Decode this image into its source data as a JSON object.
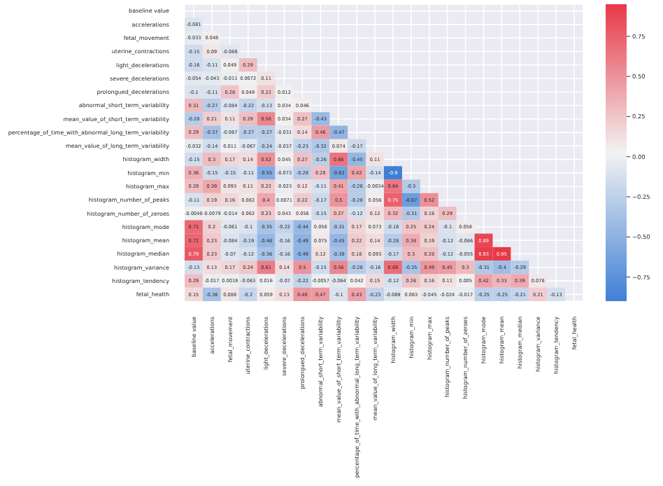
{
  "chart_data": {
    "type": "heatmap",
    "categories": [
      "baseline value",
      "accelerations",
      "fetal_movement",
      "uterine_contractions",
      "light_decelerations",
      "severe_decelerations",
      "prolongued_decelerations",
      "abnormal_short_term_variability",
      "mean_value_of_short_term_variability",
      "percentage_of_time_with_abnormal_long_term_variability",
      "mean_value_of_long_term_variability",
      "histogram_width",
      "histogram_min",
      "histogram_max",
      "histogram_number_of_peaks",
      "histogram_number_of_zeroes",
      "histogram_mode",
      "histogram_mean",
      "histogram_median",
      "histogram_variance",
      "histogram_tendency",
      "fetal_health"
    ],
    "y_categories": [
      "baseline value",
      "accelerations",
      "fetal_movement",
      "uterine_contractions",
      "light_decelerations",
      "severe_decelerations",
      "prolongued_decelerations",
      "abnormal_short_term_variability",
      "mean_value_of_short_term_variability",
      "percentage_of_time_with_abnormal_long_term_variability",
      "mean_value_of_long_term_variability",
      "histogram_width",
      "histogram_min",
      "histogram_max",
      "histogram_number_of_peaks",
      "histogram_number_of_zeroes",
      "histogram_mode",
      "histogram_mean",
      "histogram_median",
      "histogram_variance",
      "histogram_tendency",
      "fetal_health"
    ],
    "cells": [
      [
        null,
        null,
        null,
        null,
        null,
        null,
        null,
        null,
        null,
        null,
        null,
        null,
        null,
        null,
        null,
        null,
        null,
        null,
        null,
        null,
        null,
        null
      ],
      [
        -0.081,
        null,
        null,
        null,
        null,
        null,
        null,
        null,
        null,
        null,
        null,
        null,
        null,
        null,
        null,
        null,
        null,
        null,
        null,
        null,
        null,
        null
      ],
      [
        -0.033,
        0.048,
        null,
        null,
        null,
        null,
        null,
        null,
        null,
        null,
        null,
        null,
        null,
        null,
        null,
        null,
        null,
        null,
        null,
        null,
        null,
        null
      ],
      [
        -0.15,
        0.09,
        -0.069,
        null,
        null,
        null,
        null,
        null,
        null,
        null,
        null,
        null,
        null,
        null,
        null,
        null,
        null,
        null,
        null,
        null,
        null,
        null
      ],
      [
        -0.16,
        -0.11,
        0.049,
        0.29,
        null,
        null,
        null,
        null,
        null,
        null,
        null,
        null,
        null,
        null,
        null,
        null,
        null,
        null,
        null,
        null,
        null,
        null
      ],
      [
        -0.054,
        -0.043,
        -0.011,
        0.0072,
        0.11,
        null,
        null,
        null,
        null,
        null,
        null,
        null,
        null,
        null,
        null,
        null,
        null,
        null,
        null,
        null,
        null,
        null
      ],
      [
        -0.1,
        -0.11,
        0.26,
        0.049,
        0.22,
        0.012,
        null,
        null,
        null,
        null,
        null,
        null,
        null,
        null,
        null,
        null,
        null,
        null,
        null,
        null,
        null,
        null
      ],
      [
        0.31,
        -0.27,
        -0.084,
        -0.22,
        -0.13,
        0.034,
        0.046,
        null,
        null,
        null,
        null,
        null,
        null,
        null,
        null,
        null,
        null,
        null,
        null,
        null,
        null,
        null
      ],
      [
        -0.28,
        0.21,
        0.11,
        0.29,
        0.56,
        0.034,
        0.27,
        -0.43,
        null,
        null,
        null,
        null,
        null,
        null,
        null,
        null,
        null,
        null,
        null,
        null,
        null,
        null
      ],
      [
        0.29,
        -0.37,
        -0.067,
        -0.27,
        -0.27,
        -0.031,
        0.14,
        0.46,
        -0.47,
        null,
        null,
        null,
        null,
        null,
        null,
        null,
        null,
        null,
        null,
        null,
        null,
        null
      ],
      [
        -0.032,
        -0.14,
        0.011,
        -0.067,
        -0.24,
        -0.037,
        -0.23,
        -0.32,
        0.074,
        -0.17,
        null,
        null,
        null,
        null,
        null,
        null,
        null,
        null,
        null,
        null,
        null,
        null
      ],
      [
        -0.15,
        0.3,
        0.17,
        0.14,
        0.52,
        0.045,
        0.27,
        -0.26,
        0.66,
        -0.45,
        0.11,
        null,
        null,
        null,
        null,
        null,
        null,
        null,
        null,
        null,
        null,
        null
      ],
      [
        0.36,
        -0.15,
        -0.15,
        -0.11,
        -0.55,
        -0.073,
        -0.28,
        0.28,
        -0.62,
        0.42,
        -0.14,
        -0.9,
        null,
        null,
        null,
        null,
        null,
        null,
        null,
        null,
        null,
        null
      ],
      [
        0.28,
        0.39,
        0.093,
        0.11,
        0.22,
        -0.023,
        0.12,
        -0.11,
        0.41,
        -0.28,
        -0.0034,
        0.64,
        -0.3,
        null,
        null,
        null,
        null,
        null,
        null,
        null,
        null,
        null
      ],
      [
        -0.11,
        0.19,
        0.16,
        0.082,
        0.4,
        0.0071,
        0.22,
        -0.17,
        0.5,
        -0.28,
        0.056,
        0.75,
        -0.67,
        0.52,
        null,
        null,
        null,
        null,
        null,
        null,
        null,
        null
      ],
      [
        -0.0048,
        -0.0079,
        -0.014,
        0.062,
        0.23,
        0.043,
        0.056,
        -0.15,
        0.27,
        -0.12,
        0.12,
        0.32,
        -0.31,
        0.18,
        0.29,
        null,
        null,
        null,
        null,
        null,
        null,
        null
      ],
      [
        0.71,
        0.2,
        -0.061,
        -0.1,
        -0.35,
        -0.22,
        -0.44,
        0.058,
        -0.31,
        0.17,
        0.073,
        -0.16,
        0.25,
        0.24,
        -0.1,
        0.058,
        null,
        null,
        null,
        null,
        null,
        null
      ],
      [
        0.72,
        0.23,
        -0.084,
        -0.19,
        -0.46,
        -0.16,
        -0.49,
        0.075,
        -0.45,
        0.22,
        0.14,
        -0.28,
        0.38,
        0.19,
        -0.12,
        -0.066,
        0.89,
        null,
        null,
        null,
        null,
        null
      ],
      [
        0.79,
        0.23,
        -0.07,
        -0.12,
        -0.36,
        -0.16,
        -0.49,
        0.12,
        -0.38,
        0.18,
        0.093,
        -0.17,
        0.3,
        0.28,
        -0.12,
        -0.055,
        0.93,
        0.95,
        null,
        null,
        null,
        null
      ],
      [
        -0.13,
        0.13,
        0.17,
        0.24,
        0.61,
        0.14,
        0.5,
        -0.15,
        0.56,
        -0.28,
        -0.16,
        0.69,
        -0.35,
        0.49,
        0.45,
        0.3,
        -0.31,
        -0.4,
        -0.29,
        null,
        null,
        null
      ],
      [
        0.29,
        -0.017,
        0.0019,
        -0.063,
        0.016,
        -0.07,
        -0.22,
        -0.0057,
        -0.064,
        0.042,
        0.15,
        -0.12,
        0.26,
        0.16,
        0.11,
        0.005,
        0.42,
        0.33,
        0.39,
        0.078,
        null,
        null
      ],
      [
        0.15,
        -0.36,
        0.088,
        -0.2,
        0.059,
        0.13,
        0.48,
        0.47,
        -0.1,
        0.43,
        -0.23,
        -0.069,
        0.063,
        -0.045,
        -0.024,
        -0.017,
        -0.25,
        -0.25,
        -0.21,
        0.21,
        -0.13,
        null
      ]
    ],
    "clim": [
      -0.9,
      0.95
    ],
    "cticks": [
      {
        "value": 0.75,
        "label": "0.75"
      },
      {
        "value": 0.5,
        "label": "0.50"
      },
      {
        "value": 0.25,
        "label": "0.25"
      },
      {
        "value": 0,
        "label": "0.00"
      },
      {
        "value": -0.25,
        "label": "−0.25"
      },
      {
        "value": -0.5,
        "label": "−0.50"
      },
      {
        "value": -0.75,
        "label": "−0.75"
      }
    ],
    "data_labels": true,
    "grid": true
  }
}
